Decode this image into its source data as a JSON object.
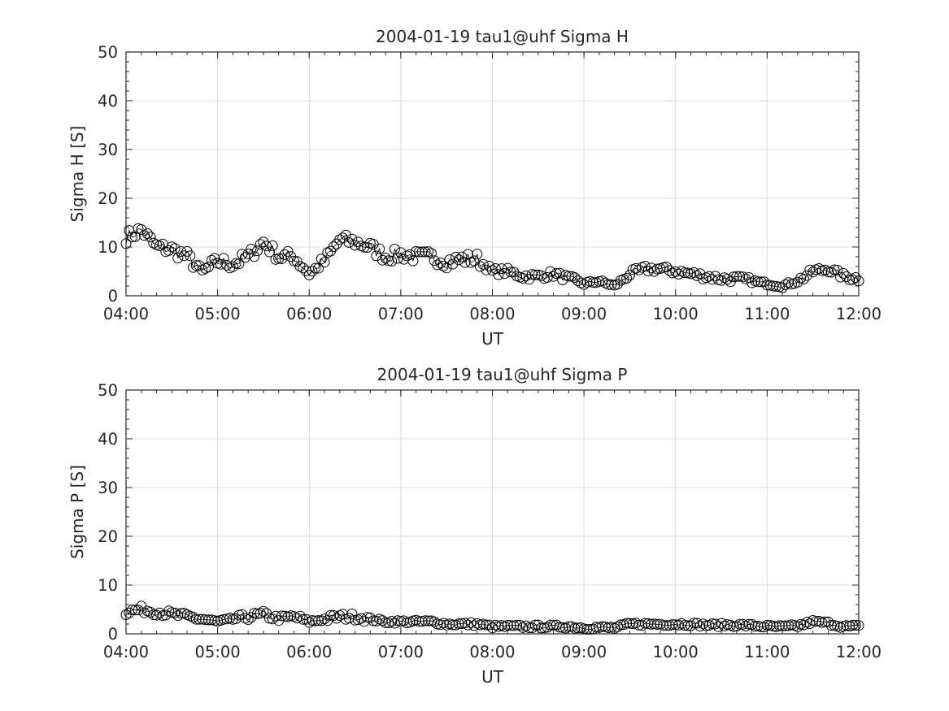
{
  "chart_data": [
    {
      "type": "scatter",
      "title": "2004-01-19  tau1@uhf Sigma H",
      "xlabel": "UT",
      "ylabel": "Sigma H [S]",
      "xlim": [
        "04:00",
        "12:00"
      ],
      "ylim": [
        0,
        50
      ],
      "grid": true,
      "marker": "open-circle",
      "line": "thin-connecting",
      "color": "#000000",
      "xticks": [
        "04:00",
        "05:00",
        "06:00",
        "07:00",
        "08:00",
        "09:00",
        "10:00",
        "11:00",
        "12:00"
      ],
      "yticks": [
        "0",
        "10",
        "20",
        "30",
        "40",
        "50"
      ],
      "x": [
        "04:00",
        "04:10",
        "04:20",
        "04:30",
        "04:40",
        "04:50",
        "05:00",
        "05:10",
        "05:20",
        "05:30",
        "05:40",
        "05:50",
        "06:00",
        "06:10",
        "06:20",
        "06:30",
        "06:40",
        "06:50",
        "07:00",
        "07:10",
        "07:20",
        "07:30",
        "07:40",
        "07:50",
        "08:00",
        "08:10",
        "08:20",
        "08:30",
        "08:40",
        "08:50",
        "09:00",
        "09:10",
        "09:20",
        "09:30",
        "09:40",
        "09:50",
        "10:00",
        "10:10",
        "10:20",
        "10:30",
        "10:40",
        "10:50",
        "11:00",
        "11:10",
        "11:20",
        "11:30",
        "11:40",
        "11:50",
        "12:00"
      ],
      "y": [
        12,
        13.5,
        10,
        9.5,
        8,
        5,
        7,
        6.5,
        8,
        11,
        8,
        8,
        4.5,
        7,
        11.5,
        11,
        10,
        8,
        8.5,
        8,
        8,
        7,
        7.5,
        7.5,
        5,
        5,
        4,
        4,
        4.5,
        3.5,
        2.5,
        3,
        2,
        4.5,
        5.5,
        5.5,
        5,
        4.5,
        4,
        3.5,
        3.5,
        3,
        2.5,
        2,
        3,
        5,
        5.5,
        4,
        3.5
      ]
    },
    {
      "type": "scatter",
      "title": "2004-01-19  tau1@uhf Sigma P",
      "xlabel": "UT",
      "ylabel": "Sigma P [S]",
      "xlim": [
        "04:00",
        "12:00"
      ],
      "ylim": [
        0,
        50
      ],
      "grid": true,
      "marker": "open-circle",
      "line": "thin-connecting",
      "color": "#000000",
      "xticks": [
        "04:00",
        "05:00",
        "06:00",
        "07:00",
        "08:00",
        "09:00",
        "10:00",
        "11:00",
        "12:00"
      ],
      "yticks": [
        "0",
        "10",
        "20",
        "30",
        "40",
        "50"
      ],
      "x": [
        "04:00",
        "04:10",
        "04:20",
        "04:30",
        "04:40",
        "04:50",
        "05:00",
        "05:10",
        "05:20",
        "05:30",
        "05:40",
        "05:50",
        "06:00",
        "06:10",
        "06:20",
        "06:30",
        "06:40",
        "06:50",
        "07:00",
        "07:10",
        "07:20",
        "07:30",
        "07:40",
        "07:50",
        "08:00",
        "08:10",
        "08:20",
        "08:30",
        "08:40",
        "08:50",
        "09:00",
        "09:10",
        "09:20",
        "09:30",
        "09:40",
        "09:50",
        "10:00",
        "10:10",
        "10:20",
        "10:30",
        "10:40",
        "10:50",
        "11:00",
        "11:10",
        "11:20",
        "11:30",
        "11:40",
        "11:50",
        "12:00"
      ],
      "y": [
        4.5,
        5,
        4.5,
        4,
        3.5,
        3,
        2.5,
        3,
        3.5,
        4,
        3,
        3.5,
        2.5,
        3,
        3.5,
        3.5,
        3,
        2.5,
        2.5,
        2.5,
        2.5,
        2,
        2,
        2,
        1.5,
        1.5,
        1.5,
        1.5,
        1.5,
        1.5,
        1.2,
        1.3,
        1.2,
        2,
        2,
        2,
        2,
        2,
        1.8,
        1.8,
        1.8,
        1.7,
        1.5,
        1.4,
        1.6,
        2.5,
        2.2,
        1.5,
        1.5
      ]
    }
  ]
}
